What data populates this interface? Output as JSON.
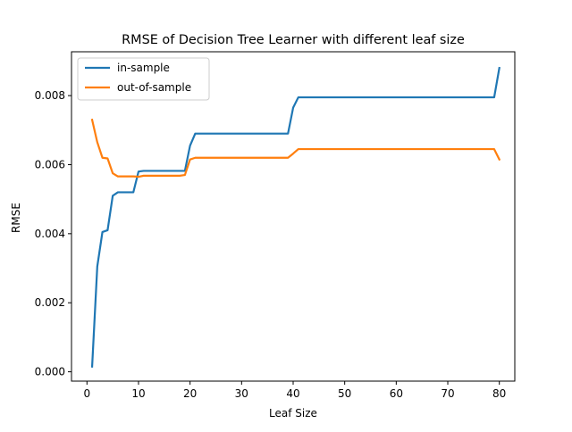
{
  "chart_data": {
    "type": "line",
    "title": "RMSE of Decision Tree Learner with different leaf size",
    "xlabel": "Leaf Size",
    "ylabel": "RMSE",
    "xlim": [
      -3,
      83
    ],
    "ylim": [
      -0.00027,
      0.00927
    ],
    "xticks": [
      0,
      10,
      20,
      30,
      40,
      50,
      60,
      70,
      80
    ],
    "xtick_labels": [
      "0",
      "10",
      "20",
      "30",
      "40",
      "50",
      "60",
      "70",
      "80"
    ],
    "yticks": [
      0.0,
      0.002,
      0.004,
      0.006,
      0.008
    ],
    "ytick_labels": [
      "0.000",
      "0.002",
      "0.004",
      "0.006",
      "0.008"
    ],
    "grid": false,
    "legend_position": "top-left",
    "series": [
      {
        "name": "in-sample",
        "color": "#1f77b4",
        "x": [
          1,
          2,
          3,
          4,
          5,
          6,
          7,
          8,
          9,
          10,
          11,
          12,
          13,
          14,
          15,
          16,
          17,
          18,
          19,
          20,
          21,
          22,
          23,
          24,
          25,
          26,
          27,
          28,
          29,
          30,
          31,
          32,
          33,
          34,
          35,
          36,
          37,
          38,
          39,
          40,
          41,
          42,
          43,
          44,
          45,
          46,
          47,
          48,
          49,
          50,
          51,
          52,
          53,
          54,
          55,
          56,
          57,
          58,
          59,
          60,
          61,
          62,
          63,
          64,
          65,
          66,
          67,
          68,
          69,
          70,
          71,
          72,
          73,
          74,
          75,
          76,
          77,
          78,
          79,
          80
        ],
        "y": [
          0.00015,
          0.00305,
          0.00405,
          0.0041,
          0.0051,
          0.0052,
          0.0052,
          0.0052,
          0.0052,
          0.0058,
          0.00582,
          0.00582,
          0.00582,
          0.00582,
          0.00582,
          0.00582,
          0.00582,
          0.00582,
          0.00582,
          0.00655,
          0.0069,
          0.0069,
          0.0069,
          0.0069,
          0.0069,
          0.0069,
          0.0069,
          0.0069,
          0.0069,
          0.0069,
          0.0069,
          0.0069,
          0.0069,
          0.0069,
          0.0069,
          0.0069,
          0.0069,
          0.0069,
          0.0069,
          0.00765,
          0.00795,
          0.00795,
          0.00795,
          0.00795,
          0.00795,
          0.00795,
          0.00795,
          0.00795,
          0.00795,
          0.00795,
          0.00795,
          0.00795,
          0.00795,
          0.00795,
          0.00795,
          0.00795,
          0.00795,
          0.00795,
          0.00795,
          0.00795,
          0.00795,
          0.00795,
          0.00795,
          0.00795,
          0.00795,
          0.00795,
          0.00795,
          0.00795,
          0.00795,
          0.00795,
          0.00795,
          0.00795,
          0.00795,
          0.00795,
          0.00795,
          0.00795,
          0.00795,
          0.00795,
          0.00795,
          0.0088
        ]
      },
      {
        "name": "out-of-sample",
        "color": "#ff7f0e",
        "x": [
          1,
          2,
          3,
          4,
          5,
          6,
          7,
          8,
          9,
          10,
          11,
          12,
          13,
          14,
          15,
          16,
          17,
          18,
          19,
          20,
          21,
          22,
          23,
          24,
          25,
          26,
          27,
          28,
          29,
          30,
          31,
          32,
          33,
          34,
          35,
          36,
          37,
          38,
          39,
          40,
          41,
          42,
          43,
          44,
          45,
          46,
          47,
          48,
          49,
          50,
          51,
          52,
          53,
          54,
          55,
          56,
          57,
          58,
          59,
          60,
          61,
          62,
          63,
          64,
          65,
          66,
          67,
          68,
          69,
          70,
          71,
          72,
          73,
          74,
          75,
          76,
          77,
          78,
          79,
          80
        ],
        "y": [
          0.0073,
          0.00665,
          0.0062,
          0.00618,
          0.00575,
          0.00566,
          0.00566,
          0.00566,
          0.00566,
          0.00565,
          0.00568,
          0.00568,
          0.00568,
          0.00568,
          0.00568,
          0.00568,
          0.00568,
          0.00568,
          0.0057,
          0.00615,
          0.0062,
          0.0062,
          0.0062,
          0.0062,
          0.0062,
          0.0062,
          0.0062,
          0.0062,
          0.0062,
          0.0062,
          0.0062,
          0.0062,
          0.0062,
          0.0062,
          0.0062,
          0.0062,
          0.0062,
          0.0062,
          0.0062,
          0.00632,
          0.00645,
          0.00645,
          0.00645,
          0.00645,
          0.00645,
          0.00645,
          0.00645,
          0.00645,
          0.00645,
          0.00645,
          0.00645,
          0.00645,
          0.00645,
          0.00645,
          0.00645,
          0.00645,
          0.00645,
          0.00645,
          0.00645,
          0.00645,
          0.00645,
          0.00645,
          0.00645,
          0.00645,
          0.00645,
          0.00645,
          0.00645,
          0.00645,
          0.00645,
          0.00645,
          0.00645,
          0.00645,
          0.00645,
          0.00645,
          0.00645,
          0.00645,
          0.00645,
          0.00645,
          0.00645,
          0.00615
        ]
      }
    ]
  }
}
